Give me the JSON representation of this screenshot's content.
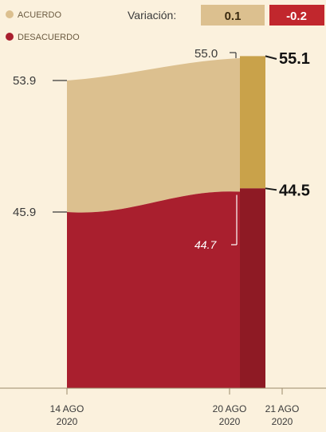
{
  "colors": {
    "background": "#fbf1dd",
    "acuerdo": "#dcc08f",
    "acuerdo_latest": "#c9a24a",
    "desacuerdo": "#a91f2e",
    "desacuerdo_latest": "#8e1a24",
    "badge_positive": "#dcc08f",
    "badge_negative": "#c1272d",
    "text": "#3a3a3a"
  },
  "legend": {
    "acuerdo": "ACUERDO",
    "desacuerdo": "DESACUERDO"
  },
  "variation": {
    "label": "Variación:",
    "acuerdo": "0.1",
    "desacuerdo": "-0.2"
  },
  "chart_data": {
    "type": "area",
    "x": [
      "14 AGO 2020",
      "20 AGO 2020",
      "21 AGO 2020"
    ],
    "x_ticks": [
      {
        "line1": "14 AGO",
        "line2": "2020"
      },
      {
        "line1": "20 AGO",
        "line2": "2020"
      },
      {
        "line1": "21 AGO",
        "line2": "2020"
      }
    ],
    "series": [
      {
        "name": "ACUERDO",
        "values": [
          53.9,
          55.0,
          55.1
        ],
        "labels": [
          "53.9",
          "55.0",
          "55.1"
        ]
      },
      {
        "name": "DESACUERDO",
        "values": [
          45.9,
          44.7,
          44.5
        ],
        "labels": [
          "45.9",
          "44.7",
          "44.5"
        ]
      }
    ],
    "stacked": true,
    "grid": false
  }
}
